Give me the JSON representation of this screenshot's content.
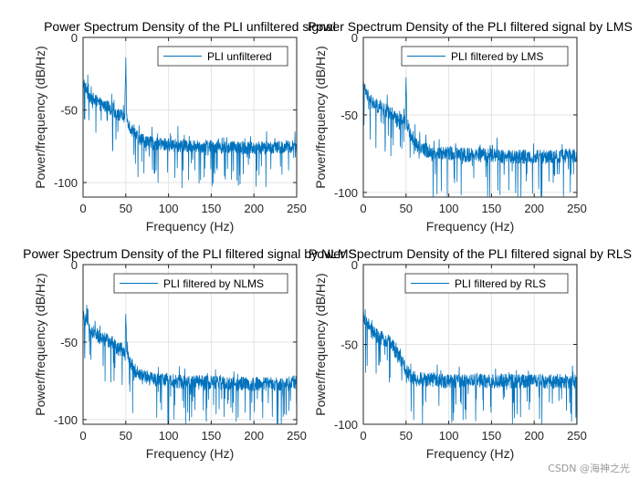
{
  "chart_data": [
    {
      "type": "line",
      "title": "Power Spectrum Density of the PLI unfiltered signal",
      "xlabel": "Frequency (Hz)",
      "ylabel": "Power/frequency (dB/Hz)",
      "xlim": [
        0,
        250
      ],
      "ylim": [
        -110,
        0
      ],
      "xticks": [
        0,
        50,
        100,
        150,
        200,
        250
      ],
      "yticks": [
        0,
        -50,
        -100
      ],
      "grid": true,
      "legend": "top-right",
      "color": "#0072BD",
      "series": [
        {
          "name": "PLI unfiltered",
          "x": [
            0,
            5,
            10,
            15,
            20,
            25,
            30,
            35,
            40,
            45,
            49,
            50,
            51,
            55,
            60,
            70,
            80,
            100,
            125,
            150,
            175,
            200,
            225,
            250
          ],
          "y": [
            -30,
            -38,
            -42,
            -44,
            -46,
            -47,
            -48,
            -50,
            -53,
            -54,
            -55,
            -14,
            -55,
            -62,
            -67,
            -71,
            -73,
            -74,
            -75,
            -75,
            -76,
            -76,
            -76,
            -75
          ]
        }
      ]
    },
    {
      "type": "line",
      "title": "Power Spectrum Density of the PLI filtered signal by LMS",
      "xlabel": "Frequency (Hz)",
      "ylabel": "Power/frequency (dB/Hz)",
      "xlim": [
        0,
        250
      ],
      "ylim": [
        -103,
        0
      ],
      "xticks": [
        0,
        50,
        100,
        150,
        200,
        250
      ],
      "yticks": [
        0,
        -50,
        -100
      ],
      "grid": true,
      "legend": "top-right",
      "color": "#0072BD",
      "series": [
        {
          "name": "PLI filtered by LMS",
          "x": [
            0,
            5,
            10,
            15,
            20,
            25,
            30,
            35,
            40,
            45,
            49,
            50,
            51,
            55,
            60,
            70,
            80,
            100,
            125,
            150,
            175,
            200,
            225,
            250
          ],
          "y": [
            -32,
            -38,
            -42,
            -44,
            -46,
            -47,
            -48,
            -50,
            -53,
            -54,
            -55,
            -26,
            -55,
            -63,
            -68,
            -72,
            -74,
            -75,
            -76,
            -76,
            -77,
            -77,
            -77,
            -76
          ]
        }
      ]
    },
    {
      "type": "line",
      "title": "Power Spectrum Density of the PLI filtered signal by NLMS",
      "xlabel": "Frequency (Hz)",
      "ylabel": "Power/frequency (dB/Hz)",
      "xlim": [
        0,
        250
      ],
      "ylim": [
        -103,
        0
      ],
      "xticks": [
        0,
        50,
        100,
        150,
        200,
        250
      ],
      "yticks": [
        0,
        -50,
        -100
      ],
      "grid": true,
      "legend": "top-right",
      "color": "#0072BD",
      "series": [
        {
          "name": "PLI filtered by NLMS",
          "x": [
            0,
            5,
            10,
            15,
            20,
            25,
            30,
            35,
            40,
            45,
            49,
            50,
            51,
            55,
            60,
            70,
            80,
            100,
            125,
            150,
            175,
            200,
            225,
            250
          ],
          "y": [
            -33,
            -39,
            -43,
            -45,
            -47,
            -48,
            -49,
            -51,
            -54,
            -55,
            -56,
            -32,
            -56,
            -63,
            -68,
            -72,
            -74,
            -75,
            -76,
            -76,
            -77,
            -77,
            -77,
            -76
          ]
        }
      ]
    },
    {
      "type": "line",
      "title": "Power Spectrum Density of the PLI filtered signal by RLS",
      "xlabel": "Frequency (Hz)",
      "ylabel": "Power/frequency (dB/Hz)",
      "xlim": [
        0,
        250
      ],
      "ylim": [
        -100,
        0
      ],
      "xticks": [
        0,
        50,
        100,
        150,
        200,
        250
      ],
      "yticks": [
        0,
        -50,
        -100
      ],
      "grid": true,
      "legend": "top-right",
      "color": "#0072BD",
      "series": [
        {
          "name": "PLI filtered by RLS",
          "x": [
            0,
            5,
            10,
            15,
            20,
            25,
            30,
            35,
            40,
            45,
            49,
            50,
            51,
            55,
            60,
            70,
            80,
            100,
            125,
            150,
            175,
            200,
            225,
            250
          ],
          "y": [
            -33,
            -39,
            -42,
            -44,
            -46,
            -47,
            -48,
            -52,
            -56,
            -60,
            -65,
            -66,
            -67,
            -70,
            -71,
            -72,
            -72,
            -73,
            -73,
            -73,
            -73,
            -73,
            -73,
            -73
          ]
        }
      ]
    }
  ],
  "watermark": "CSDN @海神之光"
}
